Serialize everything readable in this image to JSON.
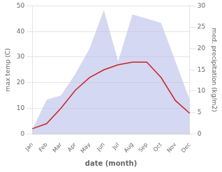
{
  "chart_data": {
    "type": "line",
    "categories": [
      "Jan",
      "Feb",
      "Mar",
      "Apr",
      "May",
      "Jun",
      "Jul",
      "Aug",
      "Sep",
      "Oct",
      "Nov",
      "Dec"
    ],
    "series": [
      {
        "type": "line",
        "color": "#cc2222",
        "values": [
          2,
          4,
          10,
          17,
          22,
          25,
          27,
          28,
          28,
          22,
          13,
          8
        ]
      },
      {
        "type": "area",
        "color": "#b0b8e8",
        "axis": "y2",
        "values": [
          1,
          8,
          9,
          14,
          20,
          29,
          17,
          28,
          27,
          26,
          17,
          8
        ]
      }
    ],
    "xlabel": "date (month)",
    "ylabel": "max temp (C)",
    "y2label": "med. precipitation (kg/m2)",
    "ylim": [
      0,
      50
    ],
    "yticks": [
      0,
      10,
      20,
      30,
      40,
      50
    ],
    "y2lim": [
      0,
      30
    ],
    "y2ticks": [
      0,
      5,
      10,
      15,
      20,
      25,
      30
    ],
    "grid": true
  }
}
